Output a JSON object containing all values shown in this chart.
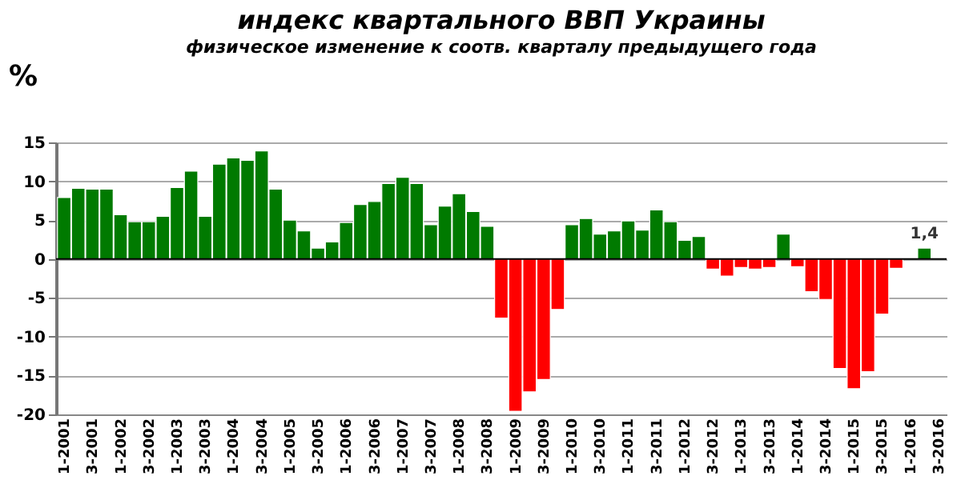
{
  "chart_data": {
    "type": "bar",
    "title": "индекс квартального ВВП Украины",
    "subtitle": "физическое изменение к соотв. кварталу  предыдущего года",
    "ylabel": "%",
    "categories": [
      "1-2001",
      null,
      "3-2001",
      null,
      "1-2002",
      null,
      "3-2002",
      null,
      "1-2003",
      null,
      "3-2003",
      null,
      "1-2004",
      null,
      "3-2004",
      null,
      "1-2005",
      null,
      "3-2005",
      null,
      "1-2006",
      null,
      "3-2006",
      null,
      "1-2007",
      null,
      "3-2007",
      null,
      "1-2008",
      null,
      "3-2008",
      null,
      "1-2009",
      null,
      "3-2009",
      null,
      "1-2010",
      null,
      "3-2010",
      null,
      "1-2011",
      null,
      "3-2011",
      null,
      "1-2012",
      null,
      "3-2012",
      null,
      "1-2013",
      null,
      "3-2013",
      null,
      "1-2014",
      null,
      "3-2014",
      null,
      "1-2015",
      null,
      "3-2015",
      null,
      "1-2016",
      null,
      "3-2016"
    ],
    "values": [
      7.9,
      9.1,
      9.0,
      9.0,
      5.7,
      4.8,
      4.8,
      5.5,
      9.2,
      11.3,
      5.5,
      12.2,
      13.0,
      12.7,
      13.9,
      9.0,
      5.0,
      3.6,
      1.4,
      2.2,
      4.7,
      7.0,
      7.4,
      9.7,
      10.5,
      9.7,
      4.4,
      6.8,
      8.4,
      6.1,
      4.2,
      -7.6,
      -19.6,
      -17.1,
      -15.5,
      -6.5,
      4.4,
      5.2,
      3.2,
      3.6,
      4.9,
      3.7,
      6.3,
      4.8,
      2.4,
      2.9,
      -1.3,
      -2.2,
      -1.1,
      -1.3,
      -1.1,
      3.2,
      -1.0,
      -4.2,
      -5.2,
      -14.1,
      -16.7,
      -14.5,
      -7.1,
      -1.2,
      null,
      1.4,
      null
    ],
    "colors": [
      "#007a00",
      "#007a00",
      "#007a00",
      "#007a00",
      "#007a00",
      "#007a00",
      "#007a00",
      "#007a00",
      "#007a00",
      "#007a00",
      "#007a00",
      "#007a00",
      "#007a00",
      "#007a00",
      "#007a00",
      "#007a00",
      "#007a00",
      "#007a00",
      "#007a00",
      "#007a00",
      "#007a00",
      "#007a00",
      "#007a00",
      "#007a00",
      "#007a00",
      "#007a00",
      "#007a00",
      "#007a00",
      "#007a00",
      "#007a00",
      "#007a00",
      "#ff0000",
      "#ff0000",
      "#ff0000",
      "#ff0000",
      "#ff0000",
      "#007a00",
      "#007a00",
      "#007a00",
      "#007a00",
      "#007a00",
      "#007a00",
      "#007a00",
      "#007a00",
      "#007a00",
      "#007a00",
      "#ff0000",
      "#ff0000",
      "#ff0000",
      "#ff0000",
      "#ff0000",
      "#007a00",
      "#ff0000",
      "#ff0000",
      "#ff0000",
      "#ff0000",
      "#ff0000",
      "#ff0000",
      "#ff0000",
      "#ff0000",
      "#007a00",
      "#007a00",
      "#007a00"
    ],
    "value_labels": [
      null,
      null,
      null,
      null,
      null,
      null,
      null,
      null,
      null,
      null,
      null,
      null,
      null,
      null,
      null,
      null,
      null,
      null,
      null,
      null,
      null,
      null,
      null,
      null,
      null,
      null,
      null,
      null,
      null,
      null,
      null,
      null,
      null,
      null,
      null,
      null,
      null,
      null,
      null,
      null,
      null,
      null,
      null,
      null,
      null,
      null,
      null,
      null,
      null,
      null,
      null,
      null,
      null,
      null,
      null,
      null,
      null,
      null,
      null,
      null,
      null,
      "1,4",
      null
    ],
    "ylim": [
      -20,
      15
    ],
    "yticks": [
      -20,
      -15,
      -10,
      -5,
      0,
      5,
      10,
      15
    ],
    "grid": "y"
  }
}
